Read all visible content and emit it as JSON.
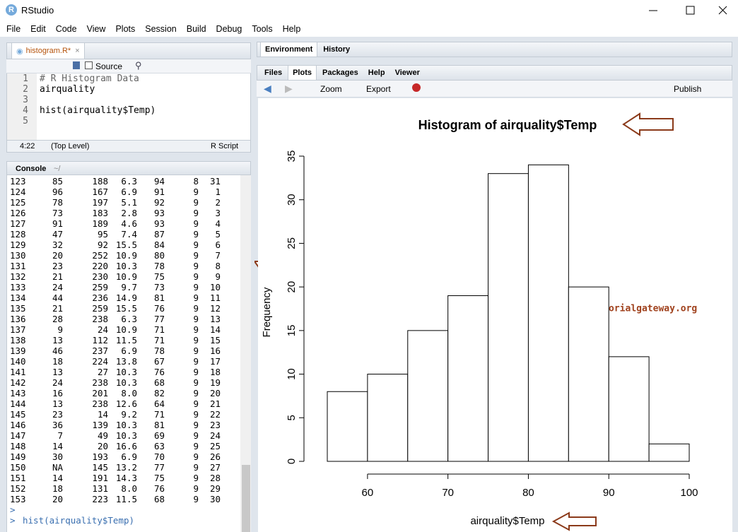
{
  "window": {
    "title": "RStudio"
  },
  "menu": [
    "File",
    "Edit",
    "Code",
    "View",
    "Plots",
    "Session",
    "Build",
    "Debug",
    "Tools",
    "Help"
  ],
  "editor": {
    "tab": "histogram.R*",
    "source_button": "Source",
    "lines": [
      {
        "number": 1,
        "code": "# R Histogram Data"
      },
      {
        "number": 2,
        "code": "airquality"
      },
      {
        "number": 3
      },
      {
        "number": 4,
        "code": "hist(airquality$Temp)"
      },
      {
        "number": 5
      }
    ],
    "status": {
      "position": "4:22",
      "scope": "(Top Level)",
      "file_type": "R Script"
    }
  },
  "console": {
    "tab": "Console",
    "path": "~/",
    "rows": [
      [
        "123",
        "85",
        "188",
        "6.3",
        "94",
        "8",
        "31"
      ],
      [
        "124",
        "96",
        "167",
        "6.9",
        "91",
        "9",
        "1"
      ],
      [
        "125",
        "78",
        "197",
        "5.1",
        "92",
        "9",
        "2"
      ],
      [
        "126",
        "73",
        "183",
        "2.8",
        "93",
        "9",
        "3"
      ],
      [
        "127",
        "91",
        "189",
        "4.6",
        "93",
        "9",
        "4"
      ],
      [
        "128",
        "47",
        "95",
        "7.4",
        "87",
        "9",
        "5"
      ],
      [
        "129",
        "32",
        "92",
        "15.5",
        "84",
        "9",
        "6"
      ],
      [
        "130",
        "20",
        "252",
        "10.9",
        "80",
        "9",
        "7"
      ],
      [
        "131",
        "23",
        "220",
        "10.3",
        "78",
        "9",
        "8"
      ],
      [
        "132",
        "21",
        "230",
        "10.9",
        "75",
        "9",
        "9"
      ],
      [
        "133",
        "24",
        "259",
        "9.7",
        "73",
        "9",
        "10"
      ],
      [
        "134",
        "44",
        "236",
        "14.9",
        "81",
        "9",
        "11"
      ],
      [
        "135",
        "21",
        "259",
        "15.5",
        "76",
        "9",
        "12"
      ],
      [
        "136",
        "28",
        "238",
        "6.3",
        "77",
        "9",
        "13"
      ],
      [
        "137",
        "9",
        "24",
        "10.9",
        "71",
        "9",
        "14"
      ],
      [
        "138",
        "13",
        "112",
        "11.5",
        "71",
        "9",
        "15"
      ],
      [
        "139",
        "46",
        "237",
        "6.9",
        "78",
        "9",
        "16"
      ],
      [
        "140",
        "18",
        "224",
        "13.8",
        "67",
        "9",
        "17"
      ],
      [
        "141",
        "13",
        "27",
        "10.3",
        "76",
        "9",
        "18"
      ],
      [
        "142",
        "24",
        "238",
        "10.3",
        "68",
        "9",
        "19"
      ],
      [
        "143",
        "16",
        "201",
        "8.0",
        "82",
        "9",
        "20"
      ],
      [
        "144",
        "13",
        "238",
        "12.6",
        "64",
        "9",
        "21"
      ],
      [
        "145",
        "23",
        "14",
        "9.2",
        "71",
        "9",
        "22"
      ],
      [
        "146",
        "36",
        "139",
        "10.3",
        "81",
        "9",
        "23"
      ],
      [
        "147",
        "7",
        "49",
        "10.3",
        "69",
        "9",
        "24"
      ],
      [
        "148",
        "14",
        "20",
        "16.6",
        "63",
        "9",
        "25"
      ],
      [
        "149",
        "30",
        "193",
        "6.9",
        "70",
        "9",
        "26"
      ],
      [
        "150",
        "NA",
        "145",
        "13.2",
        "77",
        "9",
        "27"
      ],
      [
        "151",
        "14",
        "191",
        "14.3",
        "75",
        "9",
        "28"
      ],
      [
        "152",
        "18",
        "131",
        "8.0",
        "76",
        "9",
        "29"
      ],
      [
        "153",
        "20",
        "223",
        "11.5",
        "68",
        "9",
        "30"
      ]
    ],
    "prompts": [
      {
        "prompt": ">"
      },
      {
        "prompt": ">",
        "command": "hist(airquality$Temp)"
      }
    ]
  },
  "environment_pane": {
    "tabs": [
      "Environment",
      "History"
    ]
  },
  "files_pane": {
    "tabs": [
      "Files",
      "Plots",
      "Packages",
      "Help",
      "Viewer"
    ],
    "toolbar": {
      "zoom": "Zoom",
      "export": "Export",
      "publish": "Publish"
    }
  },
  "chart_data": {
    "type": "histogram",
    "title": "Histogram of airquality$Temp",
    "x_label": "airquality$Temp",
    "y_label": "Frequency",
    "bins": [
      55,
      60,
      65,
      70,
      75,
      80,
      85,
      90,
      95,
      100
    ],
    "counts": [
      8,
      10,
      15,
      19,
      33,
      34,
      20,
      12,
      2
    ],
    "xlim": [
      55,
      100
    ],
    "ylim": [
      0,
      35
    ],
    "xticks": [
      60,
      70,
      80,
      90,
      100
    ],
    "yticks": [
      0,
      5,
      10,
      15,
      20,
      25,
      30,
      35
    ],
    "color": "#ffffff",
    "annotation": "@tutorialgateway.org"
  }
}
